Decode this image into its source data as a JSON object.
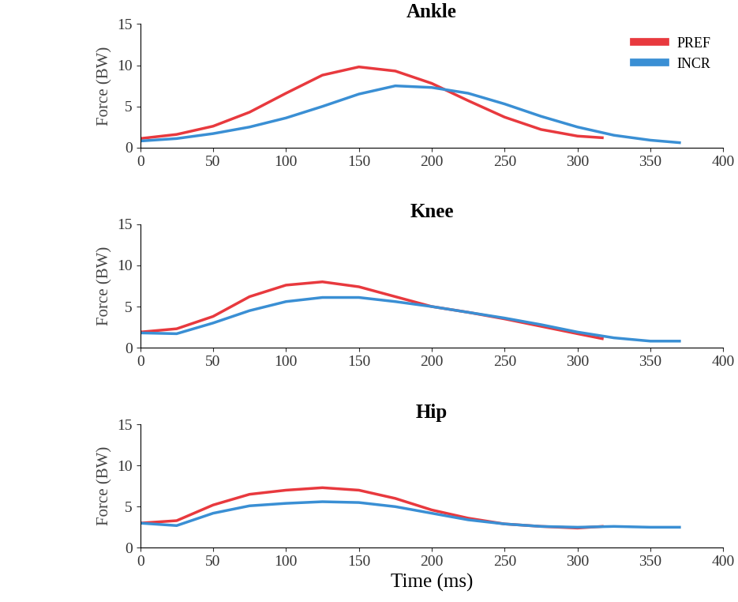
{
  "chart_data": [
    {
      "type": "line",
      "title": "Ankle",
      "y_label": "Force (BW)",
      "xlim": [
        0,
        400
      ],
      "xticks": [
        0,
        50,
        100,
        150,
        200,
        250,
        300,
        350,
        400
      ],
      "ylim": [
        0,
        15
      ],
      "yticks": [
        0,
        5,
        10,
        15
      ],
      "legend": "upper right",
      "series": [
        {
          "name": "PREF",
          "color": "#e8393e",
          "x": [
            0,
            25,
            50,
            75,
            100,
            125,
            150,
            175,
            200,
            225,
            250,
            275,
            300,
            317
          ],
          "values": [
            1.1,
            1.6,
            2.6,
            4.3,
            6.6,
            8.8,
            9.8,
            9.3,
            7.8,
            5.7,
            3.7,
            2.2,
            1.4,
            1.2
          ]
        },
        {
          "name": "INCR",
          "color": "#3a8fd4",
          "x": [
            0,
            25,
            50,
            75,
            100,
            125,
            150,
            175,
            200,
            225,
            250,
            275,
            300,
            325,
            350,
            370
          ],
          "values": [
            0.8,
            1.1,
            1.7,
            2.5,
            3.6,
            5.0,
            6.5,
            7.5,
            7.3,
            6.6,
            5.3,
            3.8,
            2.5,
            1.5,
            0.9,
            0.6
          ]
        }
      ]
    },
    {
      "type": "line",
      "title": "Knee",
      "y_label": "Force (BW)",
      "xlim": [
        0,
        400
      ],
      "xticks": [
        0,
        50,
        100,
        150,
        200,
        250,
        300,
        350,
        400
      ],
      "ylim": [
        0,
        15
      ],
      "yticks": [
        0,
        5,
        10,
        15
      ],
      "series": [
        {
          "color": "#e8393e",
          "x": [
            0,
            25,
            50,
            75,
            100,
            125,
            150,
            175,
            200,
            225,
            250,
            275,
            300,
            317
          ],
          "values": [
            1.9,
            2.3,
            3.8,
            6.2,
            7.6,
            8.0,
            7.4,
            6.2,
            5.0,
            4.3,
            3.5,
            2.6,
            1.7,
            1.1
          ]
        },
        {
          "color": "#3a8fd4",
          "x": [
            0,
            25,
            50,
            75,
            100,
            125,
            150,
            175,
            200,
            225,
            250,
            275,
            300,
            325,
            350,
            370
          ],
          "values": [
            1.8,
            1.7,
            3.0,
            4.5,
            5.6,
            6.1,
            6.1,
            5.6,
            5.0,
            4.3,
            3.6,
            2.8,
            1.9,
            1.2,
            0.8,
            0.8
          ]
        }
      ]
    },
    {
      "type": "line",
      "title": "Hip",
      "y_label": "Force (BW)",
      "x_label": "Time (ms)",
      "xlim": [
        0,
        400
      ],
      "xticks": [
        0,
        50,
        100,
        150,
        200,
        250,
        300,
        350,
        400
      ],
      "ylim": [
        0,
        15
      ],
      "yticks": [
        0,
        5,
        10,
        15
      ],
      "series": [
        {
          "color": "#e8393e",
          "x": [
            0,
            25,
            50,
            75,
            100,
            125,
            150,
            175,
            200,
            225,
            250,
            275,
            300,
            317
          ],
          "values": [
            3.0,
            3.3,
            5.2,
            6.5,
            7.0,
            7.3,
            7.0,
            6.0,
            4.6,
            3.6,
            2.9,
            2.6,
            2.4,
            2.6
          ]
        },
        {
          "color": "#3a8fd4",
          "x": [
            0,
            25,
            50,
            75,
            100,
            125,
            150,
            175,
            200,
            225,
            250,
            275,
            300,
            325,
            350,
            370
          ],
          "values": [
            3.0,
            2.7,
            4.2,
            5.1,
            5.4,
            5.6,
            5.5,
            5.0,
            4.2,
            3.4,
            2.9,
            2.6,
            2.5,
            2.6,
            2.5,
            2.5
          ]
        }
      ]
    }
  ]
}
